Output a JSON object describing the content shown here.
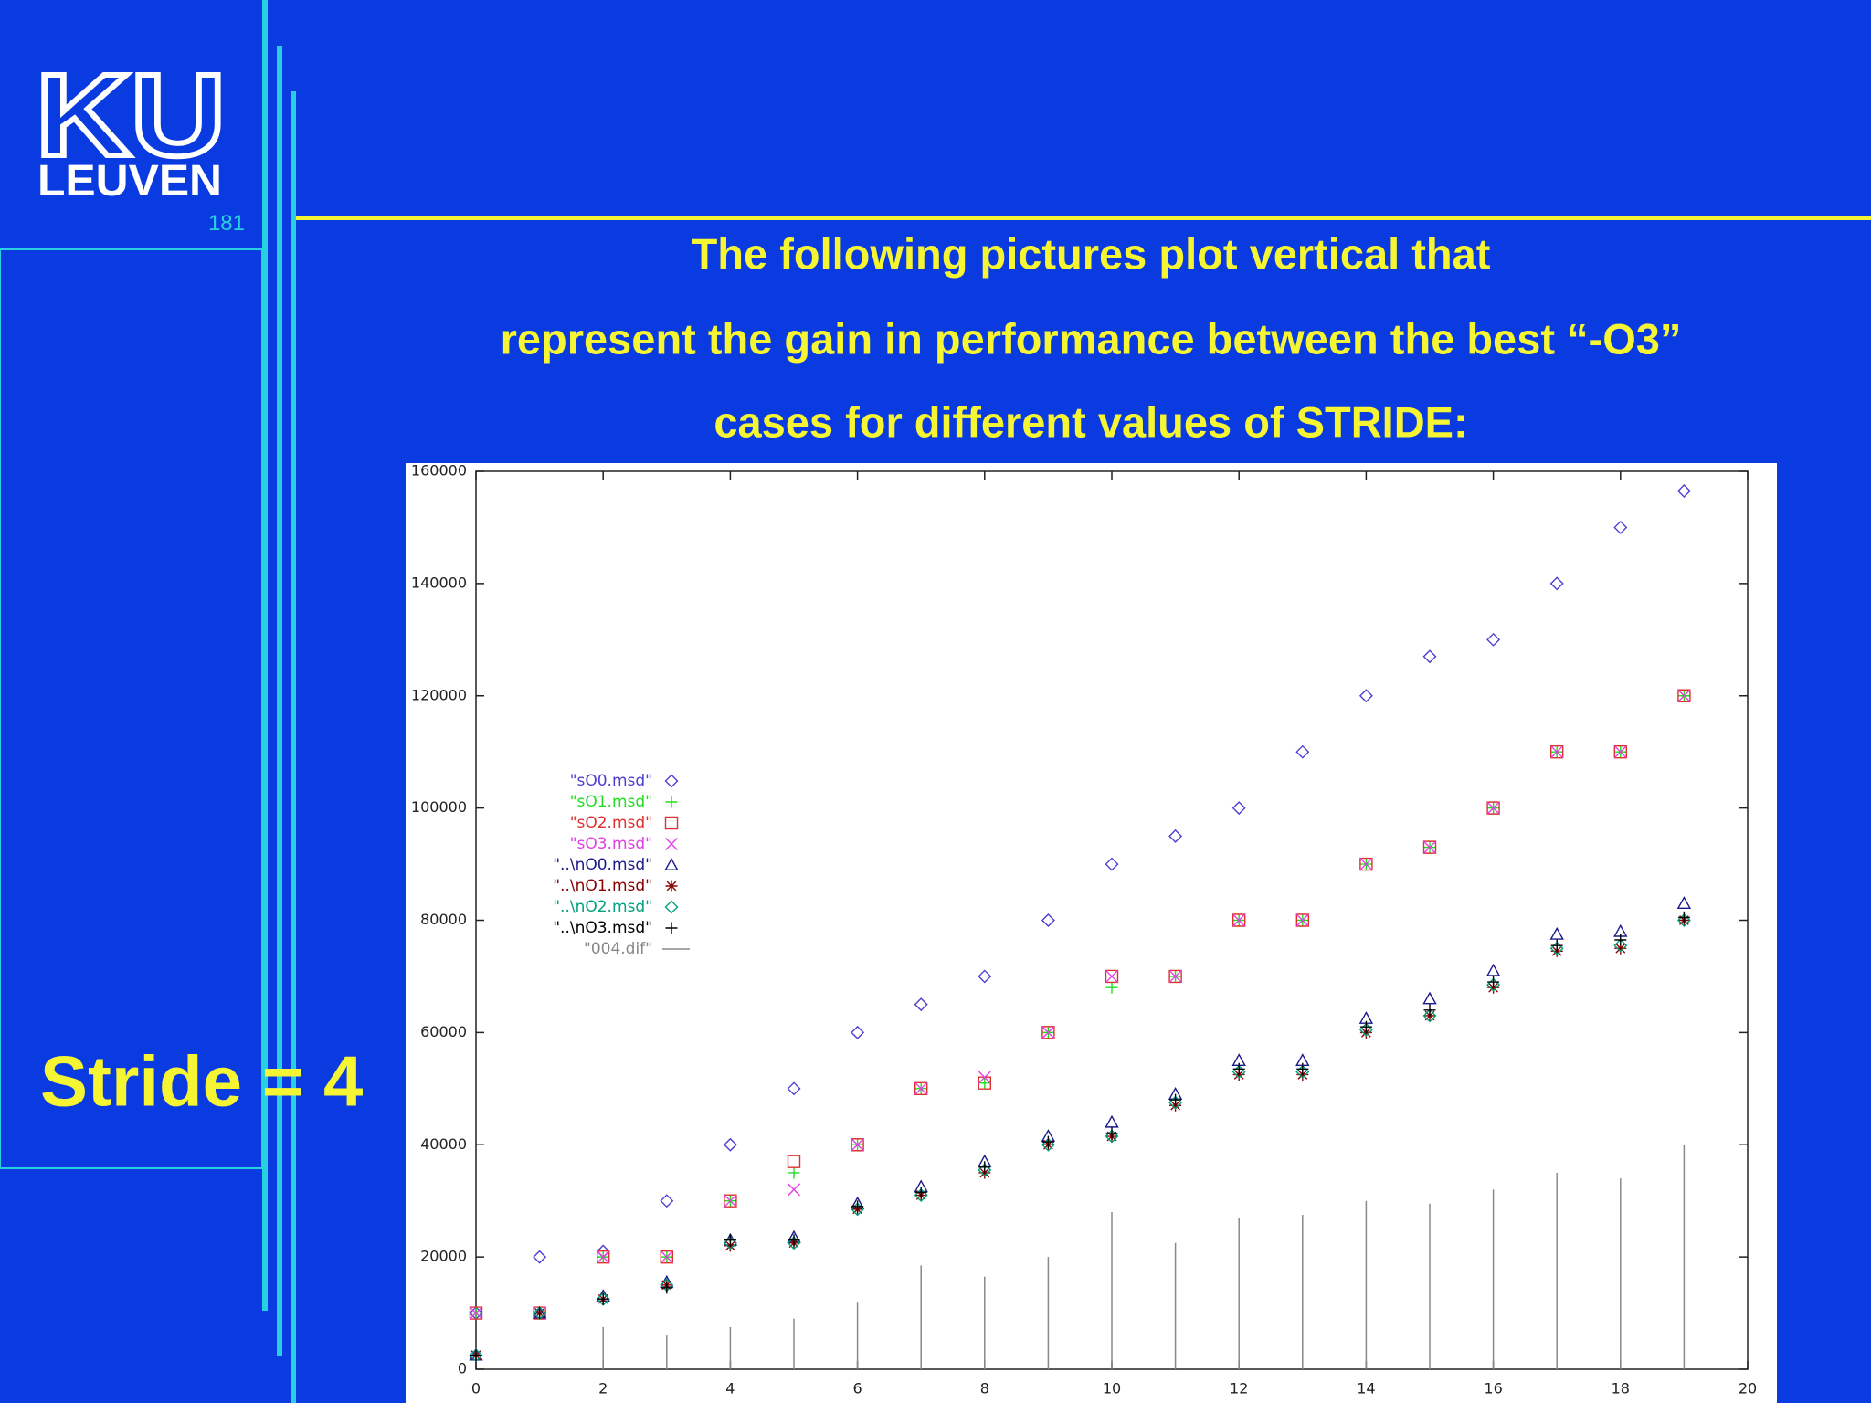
{
  "slide": {
    "logo": [
      "KU",
      "LEUVEN"
    ],
    "page_number": "181",
    "title_lines": [
      "The following pictures plot vertical that",
      "represent the gain in performance between the best “-O3”",
      "cases for different values of STRIDE:"
    ],
    "side_label": "Stride = 4"
  },
  "chart_data": {
    "type": "scatter",
    "x": [
      0,
      1,
      2,
      3,
      4,
      5,
      6,
      7,
      8,
      9,
      10,
      11,
      12,
      13,
      14,
      15,
      16,
      17,
      18,
      19
    ],
    "xlim": [
      0,
      20
    ],
    "xticks": [
      0,
      2,
      4,
      6,
      8,
      10,
      12,
      14,
      16,
      18,
      20
    ],
    "ylim": [
      0,
      160000
    ],
    "yticks": [
      0,
      20000,
      40000,
      60000,
      80000,
      100000,
      120000,
      140000,
      160000
    ],
    "legend": "left",
    "series": [
      {
        "name": "\"sO0.msd\"",
        "color": "#4b3fd1",
        "marker": "diamond",
        "values": [
          10000,
          20000,
          21000,
          30000,
          40000,
          50000,
          60000,
          65000,
          70000,
          80000,
          90000,
          95000,
          100000,
          110000,
          120000,
          127000,
          130000,
          140000,
          150000,
          156500
        ]
      },
      {
        "name": "\"sO1.msd\"",
        "color": "#22dd22",
        "marker": "plus",
        "values": [
          10000,
          10000,
          20000,
          20000,
          30000,
          35000,
          40000,
          50000,
          51000,
          60000,
          68000,
          70000,
          80000,
          80000,
          90000,
          93000,
          100000,
          110000,
          110000,
          120000
        ]
      },
      {
        "name": "\"sO2.msd\"",
        "color": "#e03030",
        "marker": "square",
        "values": [
          10000,
          10000,
          20000,
          20000,
          30000,
          37000,
          40000,
          50000,
          51000,
          60000,
          70000,
          70000,
          80000,
          80000,
          90000,
          93000,
          100000,
          110000,
          110000,
          120000
        ]
      },
      {
        "name": "\"sO3.msd\"",
        "color": "#e040e0",
        "marker": "cross",
        "values": [
          10000,
          10000,
          20000,
          20000,
          30000,
          32000,
          40000,
          50000,
          52000,
          60000,
          70000,
          70000,
          80000,
          80000,
          90000,
          93000,
          100000,
          110000,
          110000,
          120000
        ]
      },
      {
        "name": "\"..\\nO0.msd\"",
        "color": "#1a1a8a",
        "marker": "triangle",
        "values": [
          2500,
          10000,
          13000,
          15500,
          23000,
          23500,
          29500,
          32500,
          37000,
          41500,
          44000,
          49000,
          55000,
          55000,
          62500,
          66000,
          71000,
          77500,
          78000,
          83000
        ]
      },
      {
        "name": "\"..\\nO1.msd\"",
        "color": "#8b0000",
        "marker": "asterisk",
        "values": [
          2500,
          10000,
          12500,
          15000,
          22000,
          22500,
          28500,
          31000,
          35000,
          40000,
          41500,
          47000,
          52500,
          52500,
          60000,
          63000,
          68000,
          74500,
          75000,
          80000
        ]
      },
      {
        "name": "\"..\\nO2.msd\"",
        "color": "#00a080",
        "marker": "diamond",
        "values": [
          2500,
          10000,
          12500,
          15000,
          22500,
          22500,
          28500,
          31000,
          35500,
          40000,
          41500,
          47500,
          53000,
          53000,
          60500,
          63000,
          68500,
          75000,
          75500,
          80000
        ]
      },
      {
        "name": "\"..\\nO3.msd\"",
        "color": "#000000",
        "marker": "plus",
        "values": [
          2500,
          10000,
          12500,
          14500,
          23000,
          23000,
          29000,
          31500,
          36000,
          40500,
          42000,
          48000,
          53500,
          53500,
          61000,
          64000,
          69000,
          75500,
          76500,
          80500
        ]
      },
      {
        "name": "\"004.dif\"",
        "color": "#888888",
        "marker": "impulse",
        "values": [
          0,
          0,
          7500,
          6000,
          7500,
          9000,
          12000,
          18500,
          16500,
          20000,
          28000,
          22500,
          27000,
          27500,
          30000,
          29500,
          32000,
          35000,
          34000,
          40000
        ]
      }
    ]
  }
}
